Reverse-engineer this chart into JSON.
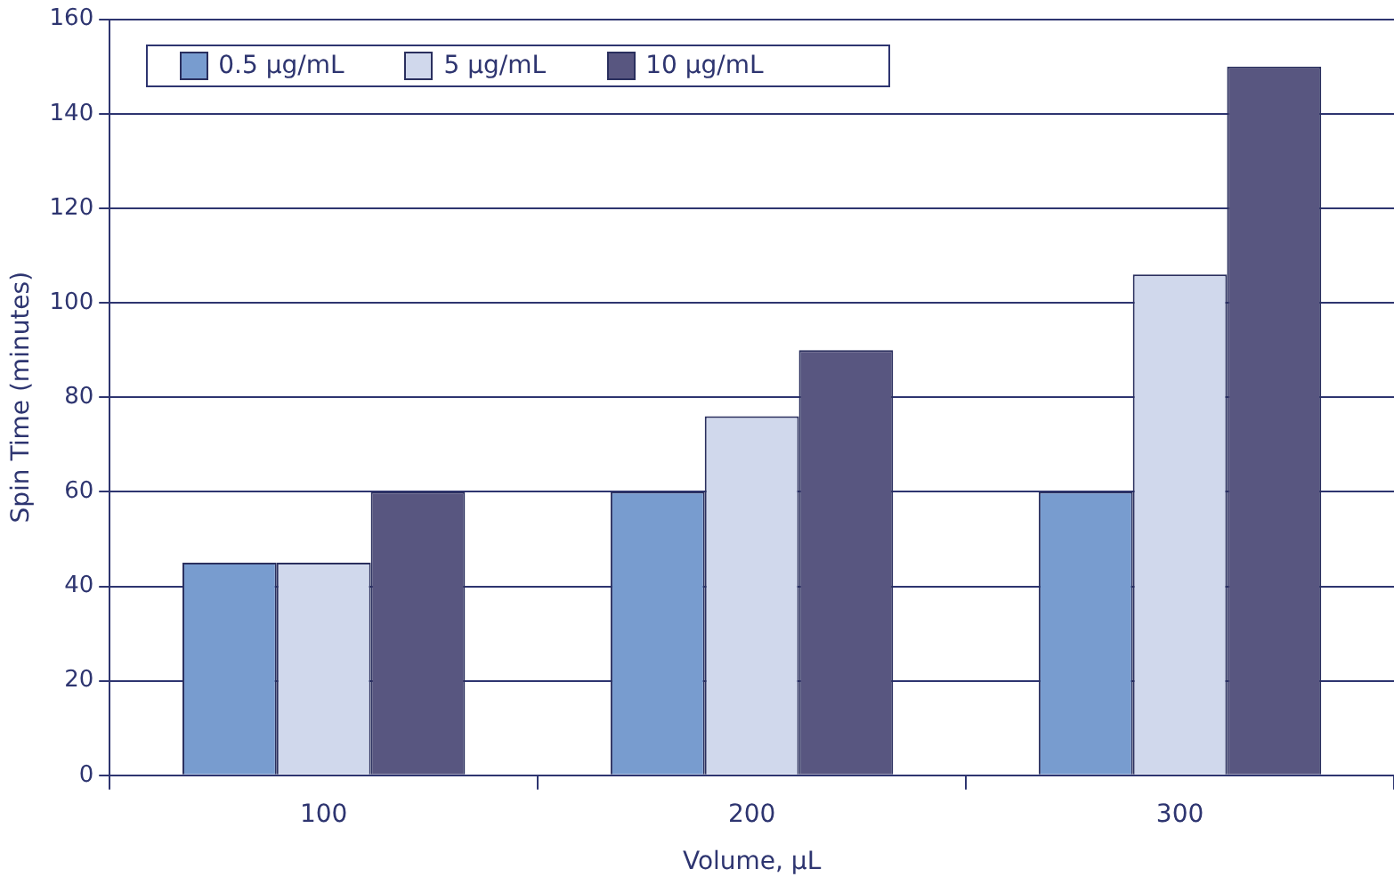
{
  "chart_data": {
    "type": "bar",
    "xlabel": "Volume, µL",
    "ylabel": "Spin Time (minutes)",
    "categories": [
      "100",
      "200",
      "300"
    ],
    "series": [
      {
        "name": "0.5 µg/mL",
        "color": "#789ccf",
        "values": [
          45,
          60,
          60
        ]
      },
      {
        "name": "5 µg/mL",
        "color": "#d0d8ec",
        "values": [
          45,
          76,
          106
        ]
      },
      {
        "name": "10 µg/mL",
        "color": "#585680",
        "values": [
          60,
          90,
          150
        ]
      }
    ],
    "ylim": [
      0,
      160
    ],
    "yticks": [
      0,
      20,
      40,
      60,
      80,
      100,
      120,
      140,
      160
    ],
    "grid": "y",
    "legend": "top left"
  }
}
